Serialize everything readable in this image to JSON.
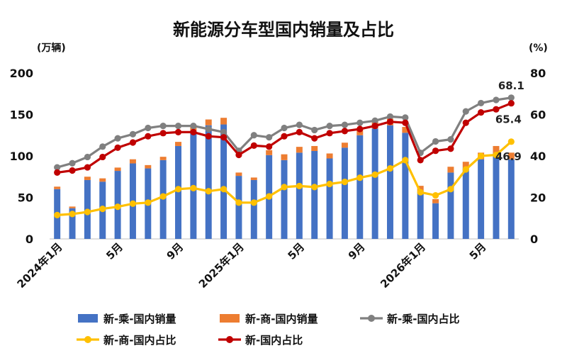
{
  "chart_data": {
    "type": "bar+line",
    "title": "新能源分车型国内销量及占比",
    "y_left_unit": "(万辆)",
    "y_right_unit": "(%)",
    "y_left_ticks": [
      "0",
      "50",
      "100",
      "150",
      "200"
    ],
    "y_right_ticks": [
      "0",
      "20",
      "40",
      "60",
      "80"
    ],
    "ylim_left": [
      0,
      200
    ],
    "ylim_right": [
      0,
      80
    ],
    "x_tick_labels": [
      {
        "index": 0,
        "label": "2024年1月"
      },
      {
        "index": 4,
        "label": "5月"
      },
      {
        "index": 8,
        "label": "9月"
      },
      {
        "index": 12,
        "label": "2025年1月"
      },
      {
        "index": 16,
        "label": "5月"
      },
      {
        "index": 20,
        "label": "9月"
      },
      {
        "index": 24,
        "label": "2026年1月"
      },
      {
        "index": 28,
        "label": "5月"
      }
    ],
    "categories": [
      "2024-01",
      "2024-02",
      "2024-03",
      "2024-04",
      "2024-05",
      "2024-06",
      "2024-07",
      "2024-08",
      "2024-09",
      "2024-10",
      "2024-11",
      "2024-12",
      "2025-01",
      "2025-02",
      "2025-03",
      "2025-04",
      "2025-05",
      "2025-06",
      "2025-07",
      "2025-08",
      "2025-09",
      "2025-10",
      "2025-11",
      "2025-12",
      "2026-01",
      "2026-02",
      "2026-03",
      "2026-04",
      "2026-05",
      "2026-06",
      "2026-07"
    ],
    "bar_series": [
      {
        "name": "新-乘-国内销量",
        "color": "#4472C4",
        "values": [
          60,
          37,
          71,
          69,
          82,
          91,
          85,
          95,
          112,
          130,
          137,
          138,
          76,
          71,
          101,
          95,
          104,
          106,
          97,
          110,
          125,
          133,
          137,
          128,
          57,
          43,
          80,
          86,
          96,
          103,
          96
        ]
      },
      {
        "name": "新-商-国内销量",
        "color": "#ED7D31",
        "values": [
          3,
          2,
          4,
          4,
          4,
          5,
          4,
          4,
          5,
          6,
          7,
          8,
          4,
          3,
          6,
          7,
          7,
          6,
          6,
          6,
          7,
          8,
          8,
          7,
          7,
          5,
          7,
          7,
          8,
          9,
          8
        ]
      }
    ],
    "line_series": [
      {
        "name": "新-乘-国内占比",
        "color": "#808080",
        "values": [
          34.5,
          36.5,
          39.5,
          44.5,
          48.5,
          50.5,
          53.5,
          54.5,
          54.5,
          54.5,
          53.0,
          51.5,
          42.5,
          50.0,
          49.0,
          53.5,
          55.0,
          52.5,
          54.5,
          55.0,
          56.0,
          57.0,
          59.0,
          58.5,
          41.5,
          47.0,
          48.0,
          61.5,
          65.5,
          67.0,
          68.1
        ]
      },
      {
        "name": "新-商-国内占比",
        "color": "#FFC000",
        "values": [
          11.5,
          12.0,
          13.0,
          14.5,
          15.5,
          17.0,
          17.5,
          20.5,
          24.0,
          24.5,
          23.0,
          24.0,
          17.5,
          17.5,
          20.5,
          25.0,
          25.5,
          25.0,
          26.5,
          27.5,
          29.5,
          31.0,
          34.0,
          38.0,
          22.5,
          21.0,
          24.0,
          33.5,
          40.0,
          40.5,
          46.9
        ]
      },
      {
        "name": "新-国内占比",
        "color": "#C00000",
        "values": [
          32.0,
          33.0,
          34.5,
          39.5,
          44.0,
          46.5,
          49.5,
          51.0,
          51.5,
          51.5,
          49.5,
          49.0,
          40.5,
          45.0,
          44.5,
          49.5,
          51.5,
          48.5,
          51.0,
          52.0,
          53.0,
          54.5,
          56.5,
          56.0,
          38.0,
          42.5,
          43.5,
          56.0,
          61.0,
          62.5,
          65.4
        ]
      }
    ],
    "data_labels": [
      {
        "series": "新-乘-国内占比",
        "index": 30,
        "text": "68.1"
      },
      {
        "series": "新-国内占比",
        "index": 30,
        "text": "65.4"
      },
      {
        "series": "新-商-国内占比",
        "index": 30,
        "text": "46.9"
      }
    ],
    "legend": {
      "position": "bottom",
      "items": [
        {
          "label": "新-乘-国内销量",
          "kind": "bar",
          "color": "#4472C4"
        },
        {
          "label": "新-商-国内销量",
          "kind": "bar",
          "color": "#ED7D31"
        },
        {
          "label": "新-乘-国内占比",
          "kind": "line",
          "color": "#808080"
        },
        {
          "label": "新-商-国内占比",
          "kind": "line",
          "color": "#FFC000"
        },
        {
          "label": "新-国内占比",
          "kind": "line",
          "color": "#C00000"
        }
      ]
    },
    "grid": false
  }
}
